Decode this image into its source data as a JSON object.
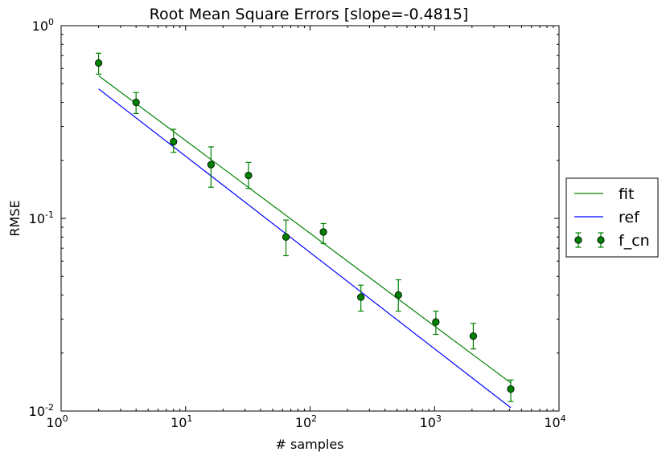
{
  "chart_data": {
    "type": "scatter",
    "title": "Root Mean Square Errors [slope=-0.4815]",
    "xlabel": "# samples",
    "ylabel": "RMSE",
    "xscale": "log",
    "yscale": "log",
    "xlim": [
      1,
      10000
    ],
    "ylim": [
      0.01,
      1
    ],
    "grid": false,
    "legend_placement": "outside-right",
    "x_ticks": [
      {
        "base": "10",
        "exp": "0",
        "value": 1
      },
      {
        "base": "10",
        "exp": "1",
        "value": 10
      },
      {
        "base": "10",
        "exp": "2",
        "value": 100
      },
      {
        "base": "10",
        "exp": "3",
        "value": 1000
      },
      {
        "base": "10",
        "exp": "4",
        "value": 10000
      }
    ],
    "y_ticks": [
      {
        "base": "10",
        "exp": "-2",
        "value": 0.01
      },
      {
        "base": "10",
        "exp": "-1",
        "value": 0.1
      },
      {
        "base": "10",
        "exp": "0",
        "value": 1
      }
    ],
    "series": [
      {
        "name": "fit",
        "kind": "line",
        "color": "#008000",
        "x": [
          2,
          4096
        ],
        "y": [
          0.55,
          0.014
        ]
      },
      {
        "name": "ref",
        "kind": "line",
        "color": "#0000ff",
        "x": [
          2,
          4096
        ],
        "y": [
          0.47,
          0.0104
        ]
      },
      {
        "name": "f_cn",
        "kind": "errorbar",
        "color": "#008000",
        "x": [
          2,
          4,
          8,
          16,
          32,
          64,
          128,
          256,
          512,
          1024,
          2048,
          4096
        ],
        "y": [
          0.64,
          0.4,
          0.25,
          0.19,
          0.167,
          0.08,
          0.085,
          0.039,
          0.04,
          0.029,
          0.0245,
          0.013
        ],
        "yerr_low": [
          0.56,
          0.35,
          0.22,
          0.145,
          0.143,
          0.064,
          0.074,
          0.033,
          0.033,
          0.025,
          0.021,
          0.0112
        ],
        "yerr_high": [
          0.72,
          0.45,
          0.29,
          0.235,
          0.195,
          0.098,
          0.094,
          0.045,
          0.048,
          0.033,
          0.0285,
          0.0145
        ]
      }
    ]
  }
}
